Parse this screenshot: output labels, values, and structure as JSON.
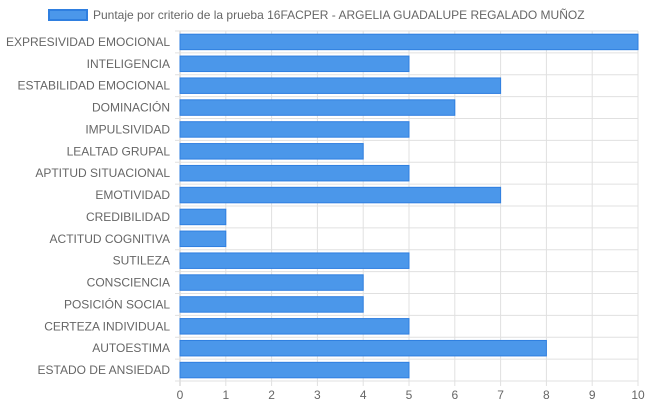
{
  "chart_data": {
    "type": "bar",
    "orientation": "horizontal",
    "title": "",
    "legend_position": "top",
    "categories": [
      "EXPRESIVIDAD EMOCIONAL",
      "INTELIGENCIA",
      "ESTABILIDAD EMOCIONAL",
      "DOMINACIÓN",
      "IMPULSIVIDAD",
      "LEALTAD GRUPAL",
      "APTITUD SITUACIONAL",
      "EMOTIVIDAD",
      "CREDIBILIDAD",
      "ACTITUD COGNITIVA",
      "SUTILEZA",
      "CONSCIENCIA",
      "POSICIÓN SOCIAL",
      "CERTEZA INDIVIDUAL",
      "AUTOESTIMA",
      "ESTADO DE ANSIEDAD"
    ],
    "series": [
      {
        "name": "Puntaje por criterio de la prueba 16FACPER - ARGELIA GUADALUPE REGALADO MUÑOZ",
        "values": [
          10,
          5,
          7,
          6,
          5,
          4,
          5,
          7,
          1,
          1,
          5,
          4,
          4,
          5,
          8,
          5
        ],
        "color": "#4b97ea",
        "border_color": "#2f7fe0"
      }
    ],
    "xlim": [
      0,
      10
    ],
    "x_ticks": [
      "0",
      "1",
      "2",
      "3",
      "4",
      "5",
      "6",
      "7",
      "8",
      "9",
      "10"
    ],
    "grid": true,
    "grid_color": "#e0e0e0"
  }
}
